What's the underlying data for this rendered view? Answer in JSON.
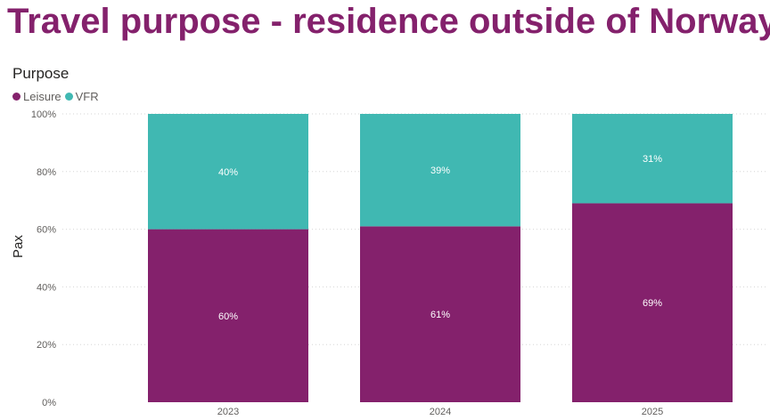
{
  "title": "Travel purpose - residence outside of Norway",
  "chart_data": {
    "type": "bar",
    "stacked": true,
    "legend_title": "Purpose",
    "legend_position": "top-left",
    "categories": [
      "2023",
      "2024",
      "2025"
    ],
    "series": [
      {
        "name": "Leisure",
        "color": "#84216c",
        "values": [
          60,
          61,
          69
        ],
        "labels": [
          "60%",
          "61%",
          "69%"
        ]
      },
      {
        "name": "VFR",
        "color": "#40b8b2",
        "values": [
          40,
          39,
          31
        ],
        "labels": [
          "40%",
          "39%",
          "31%"
        ]
      }
    ],
    "ylabel": "Pax",
    "xlabel": "",
    "ylim": [
      0,
      100
    ],
    "yticks": [
      "0%",
      "20%",
      "40%",
      "60%",
      "80%",
      "100%"
    ],
    "grid": true
  }
}
